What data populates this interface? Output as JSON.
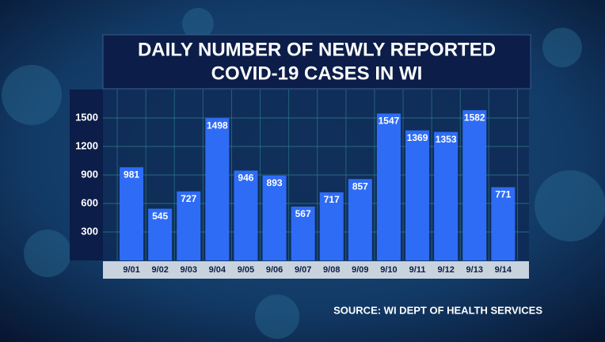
{
  "chart_data": {
    "type": "bar",
    "title": [
      "DAILY NUMBER OF NEWLY REPORTED",
      "COVID-19 CASES IN WI"
    ],
    "source": "SOURCE: WI DEPT OF HEALTH SERVICES",
    "categories": [
      "9/01",
      "9/02",
      "9/03",
      "9/04",
      "9/05",
      "9/06",
      "9/07",
      "9/08",
      "9/09",
      "9/10",
      "9/11",
      "9/12",
      "9/13",
      "9/14"
    ],
    "values": [
      981,
      545,
      727,
      1498,
      946,
      893,
      567,
      717,
      857,
      1547,
      1369,
      1353,
      1582,
      771
    ],
    "color": "#2f6cf5",
    "ylim": [
      0,
      1800
    ],
    "yticks": [
      300,
      600,
      900,
      1200,
      1500
    ],
    "grid": true
  }
}
